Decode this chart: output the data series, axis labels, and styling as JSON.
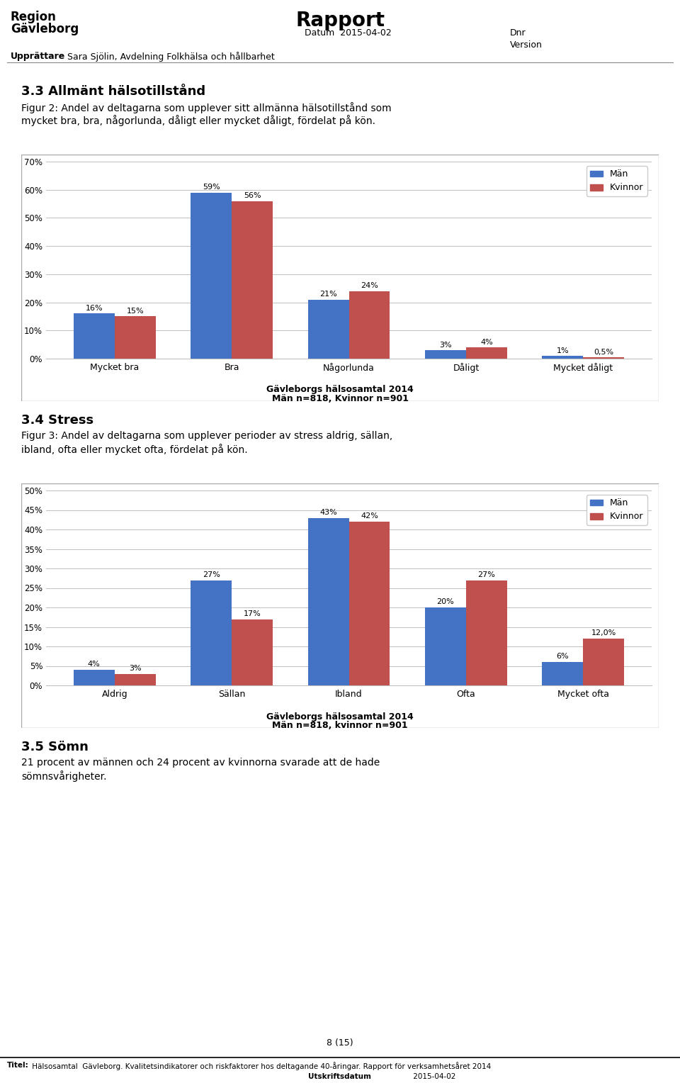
{
  "page_bg": "#ffffff",
  "header": {
    "rapport_text": "Rapport",
    "datum_label": "Datum",
    "datum_value": "2015-04-02",
    "dnr_label": "Dnr",
    "version_label": "Version",
    "upprattare_bold": "Upprättare",
    "upprattare_value": "Sara Sjölin, Avdelning Folkhälsa och hållbarhet"
  },
  "section1_heading": "3.3 Allmänt hälsotillstånd",
  "section1_figtext_line1": "Figur 2: Andel av deltagarna som upplever sitt allmänna hälsotillstånd som",
  "section1_figtext_line2": "mycket bra, bra, någorlunda, dåligt eller mycket dåligt, fördelat på kön.",
  "chart1": {
    "categories": [
      "Mycket bra",
      "Bra",
      "Någorlunda",
      "Dåligt",
      "Mycket dåligt"
    ],
    "man_values": [
      16,
      59,
      21,
      3,
      1
    ],
    "kvinna_values": [
      15,
      56,
      24,
      4,
      0.5
    ],
    "man_labels": [
      "16%",
      "59%",
      "21%",
      "3%",
      "1%"
    ],
    "kvinna_labels": [
      "15%",
      "56%",
      "24%",
      "4%",
      "0,5%"
    ],
    "ylim": [
      0,
      70
    ],
    "yticks": [
      0,
      10,
      20,
      30,
      40,
      50,
      60,
      70
    ],
    "ytick_labels": [
      "0%",
      "10%",
      "20%",
      "30%",
      "40%",
      "50%",
      "60%",
      "70%"
    ],
    "man_color": "#4472C4",
    "kvinna_color": "#C0504D",
    "legend_man": "Män",
    "legend_kvinna": "Kvinnor",
    "footnote_line1": "Gävleborgs hälsosamtal 2014",
    "footnote_line2": "Män n=818, Kvinnor n=901"
  },
  "section2_heading": "3.4 Stress",
  "section2_figtext_line1": "Figur 3: Andel av deltagarna som upplever perioder av stress aldrig, sällan,",
  "section2_figtext_line2": "ibland, ofta eller mycket ofta, fördelat på kön.",
  "chart2": {
    "categories": [
      "Aldrig",
      "Sällan",
      "Ibland",
      "Ofta",
      "Mycket ofta"
    ],
    "man_values": [
      4,
      27,
      43,
      20,
      6
    ],
    "kvinna_values": [
      3,
      17,
      42,
      27,
      12
    ],
    "man_labels": [
      "4%",
      "27%",
      "43%",
      "20%",
      "6%"
    ],
    "kvinna_labels": [
      "3%",
      "17%",
      "42%",
      "27%",
      "12,0%"
    ],
    "ylim": [
      0,
      50
    ],
    "yticks": [
      0,
      5,
      10,
      15,
      20,
      25,
      30,
      35,
      40,
      45,
      50
    ],
    "ytick_labels": [
      "0%",
      "5%",
      "10%",
      "15%",
      "20%",
      "25%",
      "30%",
      "35%",
      "40%",
      "45%",
      "50%"
    ],
    "man_color": "#4472C4",
    "kvinna_color": "#C0504D",
    "legend_man": "Män",
    "legend_kvinna": "Kvinnor",
    "footnote_line1": "Gävleborgs hälsosamtal 2014",
    "footnote_line2": "Män n=818, kvinnor n=901"
  },
  "section3_heading": "3.5 Sömn",
  "section3_text_line1": "21 procent av männen och 24 procent av kvinnorna svarade att de hade",
  "section3_text_line2": "sömnsvårigheter.",
  "footer_title_bold": "Titel:",
  "footer_title_rest": " Hälsosamtal  Gävleborg. Kvalitetsindikatorer och riskfaktorer hos deltagande 40-åringar. Rapport för verksamhetsåret 2014",
  "footer_line2_bold": "Utskriftsdatum",
  "footer_line2_rest": " 2015-04-02",
  "page_number": "8 (15)"
}
